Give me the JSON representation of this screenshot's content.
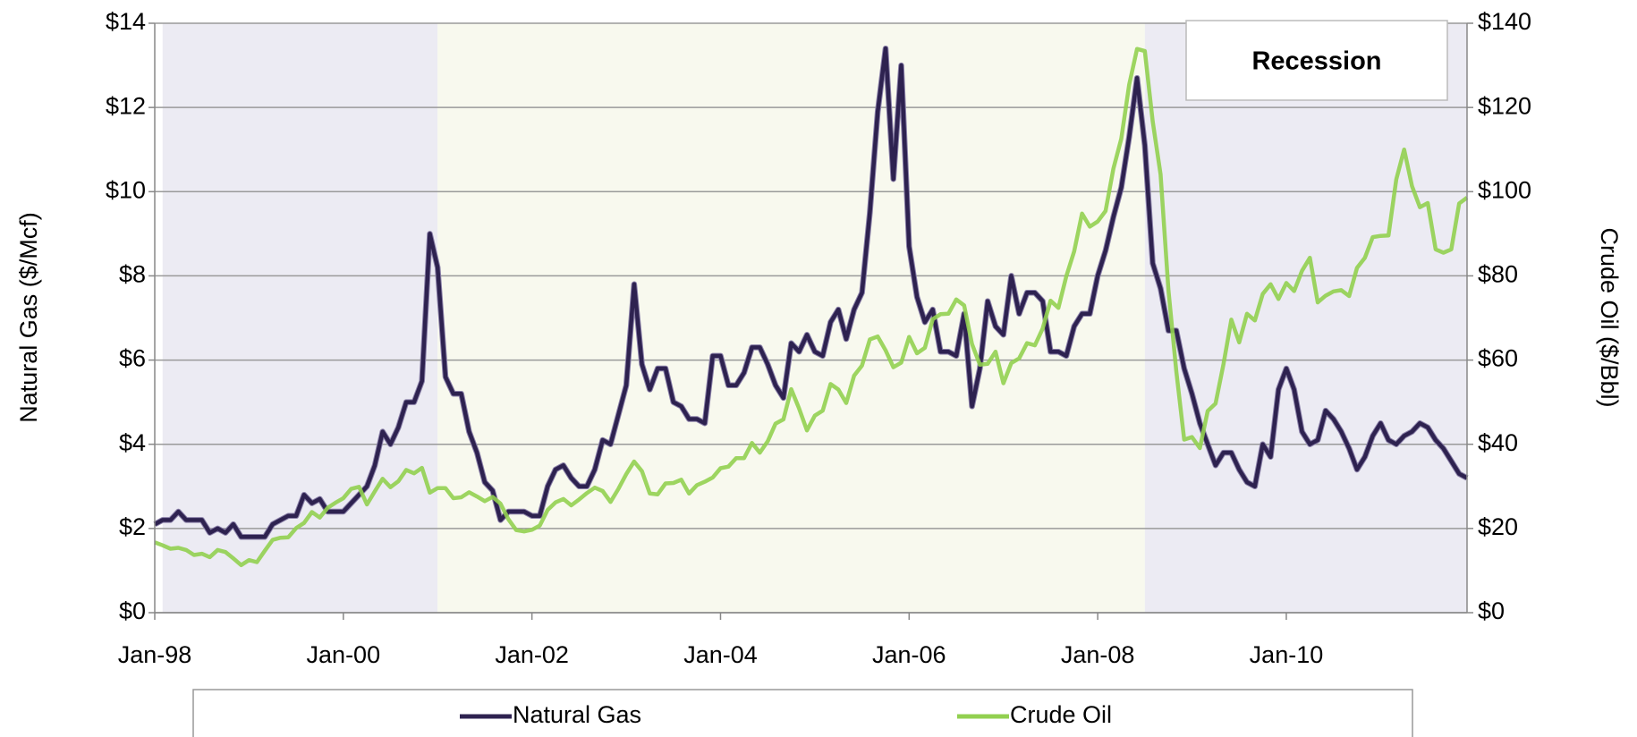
{
  "chart_data": {
    "type": "line",
    "y_label": "Natural Gas ($/Mcf)",
    "y2_label": "Crude Oil ($/Bbl)",
    "shading_label": "Recession",
    "shading": [
      {
        "start": "Feb-98",
        "end": "Jan-01",
        "color": "#ecebf3"
      },
      {
        "start": "Jan-01",
        "end": "Jul-08",
        "color": "#f8f9ee"
      },
      {
        "start": "Jul-08",
        "end": "Dec-11",
        "color": "#ecebf3"
      }
    ],
    "x": [
      "Jan-98",
      "Feb-98",
      "Mar-98",
      "Apr-98",
      "May-98",
      "Jun-98",
      "Jul-98",
      "Aug-98",
      "Sep-98",
      "Oct-98",
      "Nov-98",
      "Dec-98",
      "Jan-99",
      "Feb-99",
      "Mar-99",
      "Apr-99",
      "May-99",
      "Jun-99",
      "Jul-99",
      "Aug-99",
      "Sep-99",
      "Oct-99",
      "Nov-99",
      "Dec-99",
      "Jan-00",
      "Feb-00",
      "Mar-00",
      "Apr-00",
      "May-00",
      "Jun-00",
      "Jul-00",
      "Aug-00",
      "Sep-00",
      "Oct-00",
      "Nov-00",
      "Dec-00",
      "Jan-01",
      "Feb-01",
      "Mar-01",
      "Apr-01",
      "May-01",
      "Jun-01",
      "Jul-01",
      "Aug-01",
      "Sep-01",
      "Oct-01",
      "Nov-01",
      "Dec-01",
      "Jan-02",
      "Feb-02",
      "Mar-02",
      "Apr-02",
      "May-02",
      "Jun-02",
      "Jul-02",
      "Aug-02",
      "Sep-02",
      "Oct-02",
      "Nov-02",
      "Dec-02",
      "Jan-03",
      "Feb-03",
      "Mar-03",
      "Apr-03",
      "May-03",
      "Jun-03",
      "Jul-03",
      "Aug-03",
      "Sep-03",
      "Oct-03",
      "Nov-03",
      "Dec-03",
      "Jan-04",
      "Feb-04",
      "Mar-04",
      "Apr-04",
      "May-04",
      "Jun-04",
      "Jul-04",
      "Aug-04",
      "Sep-04",
      "Oct-04",
      "Nov-04",
      "Dec-04",
      "Jan-05",
      "Feb-05",
      "Mar-05",
      "Apr-05",
      "May-05",
      "Jun-05",
      "Jul-05",
      "Aug-05",
      "Sep-05",
      "Oct-05",
      "Nov-05",
      "Dec-05",
      "Jan-06",
      "Feb-06",
      "Mar-06",
      "Apr-06",
      "May-06",
      "Jun-06",
      "Jul-06",
      "Aug-06",
      "Sep-06",
      "Oct-06",
      "Nov-06",
      "Dec-06",
      "Jan-07",
      "Feb-07",
      "Mar-07",
      "Apr-07",
      "May-07",
      "Jun-07",
      "Jul-07",
      "Aug-07",
      "Sep-07",
      "Oct-07",
      "Nov-07",
      "Dec-07",
      "Jan-08",
      "Feb-08",
      "Mar-08",
      "Apr-08",
      "May-08",
      "Jun-08",
      "Jul-08",
      "Aug-08",
      "Sep-08",
      "Oct-08",
      "Nov-08",
      "Dec-08",
      "Jan-09",
      "Feb-09",
      "Mar-09",
      "Apr-09",
      "May-09",
      "Jun-09",
      "Jul-09",
      "Aug-09",
      "Sep-09",
      "Oct-09",
      "Nov-09",
      "Dec-09",
      "Jan-10",
      "Feb-10",
      "Mar-10",
      "Apr-10",
      "May-10",
      "Jun-10",
      "Jul-10",
      "Aug-10",
      "Sep-10",
      "Oct-10",
      "Nov-10",
      "Dec-10",
      "Jan-11",
      "Feb-11",
      "Mar-11",
      "Apr-11",
      "May-11",
      "Jun-11",
      "Jul-11",
      "Aug-11",
      "Sep-11",
      "Oct-11",
      "Nov-11",
      "Dec-11"
    ],
    "xticks": [
      "Jan-98",
      "Jan-00",
      "Jan-02",
      "Jan-04",
      "Jan-06",
      "Jan-08",
      "Jan-10"
    ],
    "series": [
      {
        "name": "Natural Gas",
        "color": "#2e2250",
        "axis": "y",
        "values": [
          2.1,
          2.2,
          2.2,
          2.4,
          2.2,
          2.2,
          2.2,
          1.9,
          2.0,
          1.9,
          2.1,
          1.8,
          1.8,
          1.8,
          1.8,
          2.1,
          2.2,
          2.3,
          2.3,
          2.8,
          2.6,
          2.7,
          2.4,
          2.4,
          2.4,
          2.6,
          2.8,
          3.0,
          3.5,
          4.3,
          4.0,
          4.4,
          5.0,
          5.0,
          5.5,
          9.0,
          8.2,
          5.6,
          5.2,
          5.2,
          4.3,
          3.8,
          3.1,
          2.9,
          2.2,
          2.4,
          2.4,
          2.4,
          2.3,
          2.3,
          3.0,
          3.4,
          3.5,
          3.2,
          3.0,
          3.0,
          3.4,
          4.1,
          4.0,
          4.7,
          5.4,
          7.8,
          5.9,
          5.3,
          5.8,
          5.8,
          5.0,
          4.9,
          4.6,
          4.6,
          4.5,
          6.1,
          6.1,
          5.4,
          5.4,
          5.7,
          6.3,
          6.3,
          5.9,
          5.4,
          5.1,
          6.4,
          6.2,
          6.6,
          6.2,
          6.1,
          6.9,
          7.2,
          6.5,
          7.2,
          7.6,
          9.5,
          11.9,
          13.4,
          10.3,
          13.0,
          8.7,
          7.5,
          6.9,
          7.2,
          6.2,
          6.2,
          6.1,
          7.1,
          4.9,
          5.8,
          7.4,
          6.8,
          6.6,
          8.0,
          7.1,
          7.6,
          7.6,
          7.4,
          6.2,
          6.2,
          6.1,
          6.8,
          7.1,
          7.1,
          8.0,
          8.6,
          9.4,
          10.1,
          11.3,
          12.7,
          11.1,
          8.3,
          7.7,
          6.7,
          6.7,
          5.8,
          5.2,
          4.5,
          4.0,
          3.5,
          3.8,
          3.8,
          3.4,
          3.1,
          3.0,
          4.0,
          3.7,
          5.3,
          5.8,
          5.3,
          4.3,
          4.0,
          4.1,
          4.8,
          4.6,
          4.3,
          3.9,
          3.4,
          3.7,
          4.2,
          4.5,
          4.1,
          4.0,
          4.2,
          4.3,
          4.5,
          4.4,
          4.1,
          3.9,
          3.6,
          3.3,
          3.2
        ]
      },
      {
        "name": "Crude Oil",
        "color": "#92d050",
        "axis": "y2",
        "values": [
          16.7,
          16,
          15.2,
          15.4,
          14.9,
          13.7,
          14,
          13.2,
          14.9,
          14.4,
          12.9,
          11.3,
          12.5,
          12,
          14.7,
          17.3,
          17.8,
          17.9,
          20.1,
          21.3,
          23.9,
          22.6,
          24.9,
          26.1,
          27.2,
          29.4,
          29.9,
          25.7,
          28.8,
          31.8,
          29.8,
          31.2,
          33.9,
          33.1,
          34.4,
          28.5,
          29.6,
          29.6,
          27.2,
          27.4,
          28.6,
          27.6,
          26.5,
          27.5,
          25.9,
          22.2,
          19.6,
          19.3,
          19.7,
          20.7,
          24.4,
          26.2,
          27,
          25.5,
          26.9,
          28.4,
          29.7,
          28.9,
          26.3,
          29.4,
          32.9,
          35.9,
          33.6,
          28.3,
          28.1,
          30.7,
          30.8,
          31.6,
          28.3,
          30.3,
          31.1,
          32.1,
          34.3,
          34.7,
          36.7,
          36.7,
          40.3,
          38,
          40.7,
          44.9,
          45.9,
          53.1,
          48.5,
          43.3,
          46.8,
          48,
          54.3,
          53,
          49.8,
          56.3,
          58.7,
          64.9,
          65.6,
          62.3,
          58.3,
          59.4,
          65.5,
          61.6,
          62.9,
          69.7,
          70.9,
          71,
          74.4,
          73,
          63.8,
          58.9,
          59.1,
          62,
          54.5,
          59.3,
          60.4,
          64,
          63.5,
          67.5,
          74.1,
          72.4,
          79.9,
          85.8,
          94.8,
          91.7,
          92.9,
          95.4,
          105.5,
          112.6,
          125.4,
          133.9,
          133.4,
          116.7,
          104.1,
          76.6,
          57.3,
          41.1,
          41.7,
          39.1,
          47.9,
          49.7,
          59,
          69.6,
          64.2,
          71,
          69.4,
          75.7,
          78,
          74.5,
          78.3,
          76.4,
          81.2,
          84.3,
          73.7,
          75.3,
          76.3,
          76.6,
          75.2,
          81.9,
          84.3,
          89.2,
          89.5,
          89.6,
          102.9,
          110,
          101.3,
          96.3,
          97.3,
          86.3,
          85.5,
          86.3,
          97.2,
          98.6
        ]
      }
    ],
    "ylim": [
      0,
      14
    ],
    "yticks": [
      {
        "value": 0,
        "label": "$0"
      },
      {
        "value": 2,
        "label": "$2"
      },
      {
        "value": 4,
        "label": "$4"
      },
      {
        "value": 6,
        "label": "$6"
      },
      {
        "value": 8,
        "label": "$8"
      },
      {
        "value": 10,
        "label": "$10"
      },
      {
        "value": 12,
        "label": "$12"
      },
      {
        "value": 14,
        "label": "$14"
      }
    ],
    "y2lim": [
      0,
      140
    ],
    "y2ticks": [
      {
        "value": 0,
        "label": "$0"
      },
      {
        "value": 20,
        "label": "$20"
      },
      {
        "value": 40,
        "label": "$40"
      },
      {
        "value": 60,
        "label": "$60"
      },
      {
        "value": 80,
        "label": "$80"
      },
      {
        "value": 100,
        "label": "$100"
      },
      {
        "value": 120,
        "label": "$120"
      },
      {
        "value": 140,
        "label": "$140"
      }
    ],
    "grid": true,
    "legend": "bottom"
  }
}
